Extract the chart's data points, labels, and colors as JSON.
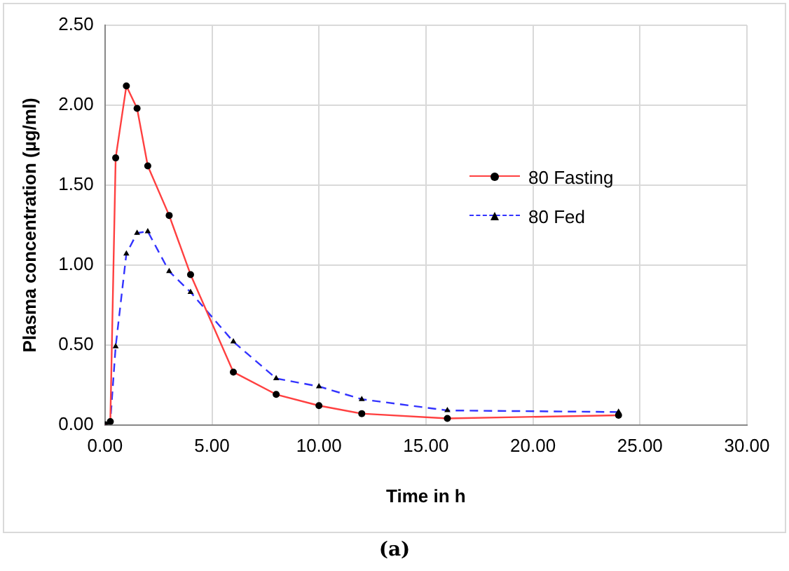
{
  "chart_data": {
    "type": "line",
    "xlabel": "Time in h",
    "ylabel": "Plasma concentration (µg/ml)",
    "xlim": [
      0,
      30
    ],
    "xticks": [
      {
        "value": 0,
        "label": "0.00"
      },
      {
        "value": 5,
        "label": "5.00"
      },
      {
        "value": 10,
        "label": "10.00"
      },
      {
        "value": 15,
        "label": "15.00"
      },
      {
        "value": 20,
        "label": "20.00"
      },
      {
        "value": 25,
        "label": "25.00"
      },
      {
        "value": 30,
        "label": "30.00"
      }
    ],
    "ylim": [
      0,
      2.5
    ],
    "yticks": [
      {
        "value": 0,
        "label": "0.00"
      },
      {
        "value": 0.5,
        "label": "0.50"
      },
      {
        "value": 1,
        "label": "1.00"
      },
      {
        "value": 1.5,
        "label": "1.50"
      },
      {
        "value": 2,
        "label": "2.00"
      },
      {
        "value": 2.5,
        "label": "2.50"
      }
    ],
    "grid": true,
    "legend": "right",
    "annotations": [
      "(a)"
    ],
    "series": [
      {
        "name": "80 Fasting",
        "color": "#ff4040",
        "marker": "circle",
        "line_style": "solid",
        "x": [
          0,
          0.25,
          0.5,
          1,
          1.5,
          2,
          3,
          4,
          6,
          8,
          10,
          12,
          16,
          24
        ],
        "values": [
          0,
          0.02,
          1.67,
          2.12,
          1.98,
          1.62,
          1.31,
          0.94,
          0.33,
          0.19,
          0.12,
          0.07,
          0.04,
          0.06
        ]
      },
      {
        "name": "80 Fed",
        "color": "#3333ff",
        "marker": "triangle",
        "line_style": "dashed",
        "x": [
          0,
          0.25,
          0.5,
          1,
          1.5,
          2,
          3,
          4,
          6,
          8,
          10,
          12,
          16,
          24
        ],
        "values": [
          0,
          0.02,
          0.49,
          1.07,
          1.2,
          1.21,
          0.96,
          0.83,
          0.52,
          0.29,
          0.24,
          0.16,
          0.09,
          0.08
        ]
      }
    ]
  }
}
